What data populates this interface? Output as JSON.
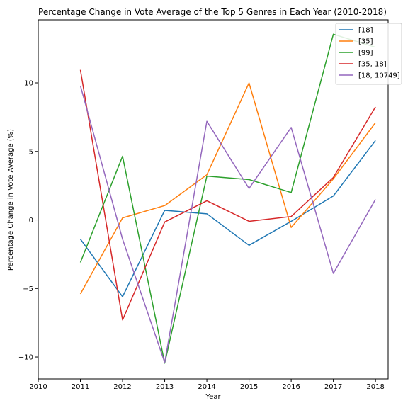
{
  "chart_data": {
    "type": "line",
    "title": "Percentage Change in Vote Average of the Top 5 Genres in Each Year (2010-2018)",
    "xlabel": "Year",
    "ylabel": "Percentage Change in Vote Average (%)",
    "xlim": [
      2010,
      2018.3
    ],
    "ylim": [
      -11.6,
      14.6
    ],
    "xticks": [
      2010,
      2011,
      2012,
      2013,
      2014,
      2015,
      2016,
      2017,
      2018
    ],
    "yticks": [
      -10,
      -5,
      0,
      5,
      10
    ],
    "x": [
      2011,
      2012,
      2013,
      2014,
      2015,
      2016,
      2017,
      2018
    ],
    "grid": false,
    "legend_position": "top-right",
    "series": [
      {
        "name": "[18]",
        "color": "#1f77b4",
        "values": [
          -1.4,
          -5.6,
          0.7,
          0.45,
          -1.85,
          -0.1,
          1.75,
          5.8
        ]
      },
      {
        "name": "[35]",
        "color": "#ff7f0e",
        "values": [
          -5.4,
          0.15,
          1.05,
          3.3,
          10.0,
          -0.55,
          3.0,
          7.1
        ]
      },
      {
        "name": "[99]",
        "color": "#2ca02c",
        "values": [
          -3.1,
          4.65,
          -10.45,
          3.2,
          2.95,
          2.0,
          13.55,
          12.6
        ]
      },
      {
        "name": "[35, 18]",
        "color": "#d62728",
        "values": [
          10.95,
          -7.3,
          -0.15,
          1.4,
          -0.1,
          0.25,
          3.1,
          8.25
        ]
      },
      {
        "name": "[18, 10749]",
        "color": "#9467bd",
        "values": [
          9.8,
          -1.4,
          -10.4,
          7.2,
          2.3,
          6.75,
          -3.9,
          1.5
        ]
      }
    ]
  }
}
